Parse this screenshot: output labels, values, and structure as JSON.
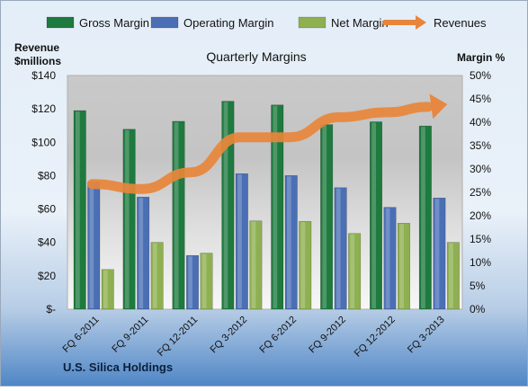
{
  "chart_data": {
    "type": "bar",
    "title": "Quarterly Margins",
    "left_axis_label": [
      "Revenue",
      "$millions"
    ],
    "right_axis_label": "Margin %",
    "footer": "U.S. Silica Holdings",
    "categories": [
      "FQ 6-2011",
      "FQ 9-2011",
      "FQ 12-2011",
      "FQ 3-2012",
      "FQ 6-2012",
      "FQ 9-2012",
      "FQ 12-2012",
      "FQ 3-2013"
    ],
    "left_axis": {
      "ticks": [
        "$-",
        "$20",
        "$40",
        "$60",
        "$80",
        "$100",
        "$120",
        "$140"
      ],
      "range": [
        0,
        140
      ]
    },
    "right_axis": {
      "ticks": [
        "0%",
        "5%",
        "10%",
        "15%",
        "20%",
        "25%",
        "30%",
        "35%",
        "40%",
        "45%",
        "50%"
      ],
      "range": [
        0,
        50
      ]
    },
    "series": [
      {
        "name": "Gross Margin",
        "kind": "bar",
        "axis": "right",
        "color": "#1e7a3e",
        "values": [
          42.5,
          38.5,
          40.2,
          44.5,
          43.7,
          39.5,
          40.1,
          39.2
        ]
      },
      {
        "name": "Operating Margin",
        "kind": "bar",
        "axis": "right",
        "color": "#4a6fb5",
        "values": [
          27.2,
          24.0,
          11.5,
          29.0,
          28.6,
          26.0,
          21.8,
          23.8
        ]
      },
      {
        "name": "Net Margin",
        "kind": "bar",
        "axis": "right",
        "color": "#8eb050",
        "values": [
          8.5,
          14.3,
          12.0,
          18.9,
          18.8,
          16.2,
          18.4,
          14.3
        ]
      },
      {
        "name": "Revenues",
        "kind": "arrow-line",
        "axis": "left",
        "color": "#e8853a",
        "values": [
          75,
          72,
          82,
          103,
          103,
          115,
          118,
          122
        ]
      }
    ],
    "grid": false,
    "legend_position": "top"
  }
}
